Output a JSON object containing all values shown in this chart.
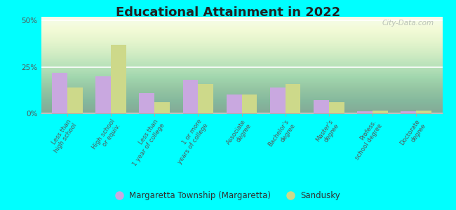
{
  "title": "Educational Attainment in 2022",
  "categories": [
    "Less than\nhigh school",
    "High school\nor equiv.",
    "Less than\n1 year of college",
    "1 or more\nyears of college",
    "Associate\ndegree",
    "Bachelor's\ndegree",
    "Master's\ndegree",
    "Profess.\nschool degree",
    "Doctorate\ndegree"
  ],
  "margaretta_values": [
    22,
    20,
    11,
    18,
    10,
    14,
    7,
    1,
    1
  ],
  "sandusky_values": [
    14,
    37,
    6,
    16,
    10,
    16,
    6,
    1.5,
    1.5
  ],
  "margaretta_color": "#c9a8e0",
  "sandusky_color": "#cdd98a",
  "outer_bg": "#00ffff",
  "ylim": [
    0,
    52
  ],
  "yticks": [
    0,
    25,
    50
  ],
  "ytick_labels": [
    "0%",
    "25%",
    "50%"
  ],
  "legend_label1": "Margaretta Township (Margaretta)",
  "legend_label2": "Sandusky",
  "watermark": "City-Data.com"
}
